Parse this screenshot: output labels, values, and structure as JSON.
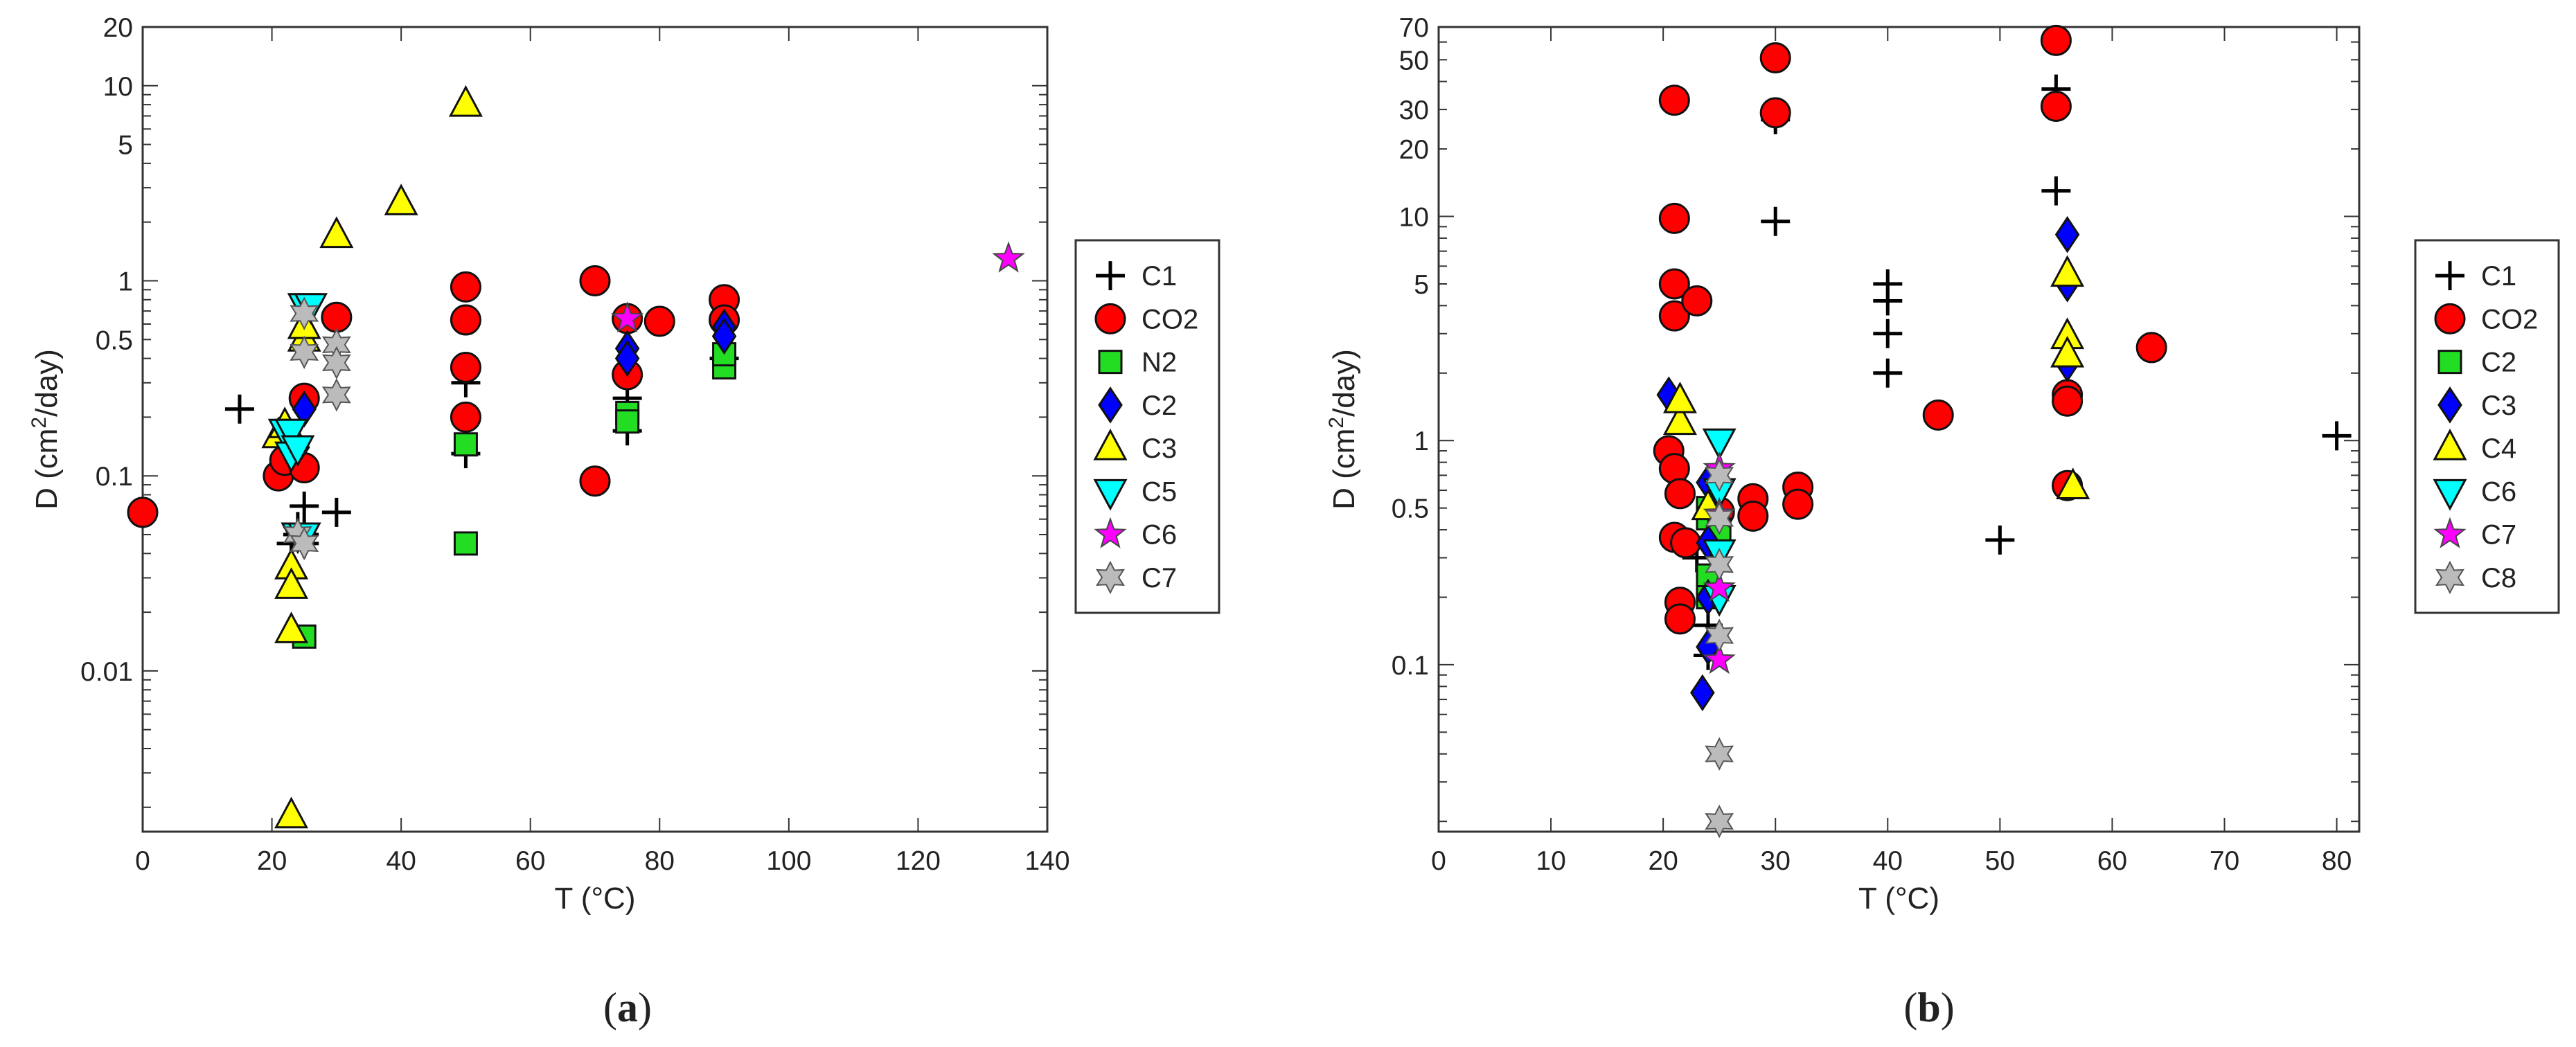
{
  "chart_data": [
    {
      "type": "scatter",
      "panel_label": "(a)",
      "panel_letter": "a",
      "title": "",
      "xlabel": "T (°C)",
      "ylabel": "D (cm²/day)",
      "ylabel_parts": [
        "D (cm",
        "2",
        "/day)"
      ],
      "xscale": "linear",
      "yscale": "log",
      "xlim": [
        0,
        140
      ],
      "ylim": [
        0.0015,
        20
      ],
      "xticks": [
        0,
        20,
        40,
        60,
        80,
        100,
        120,
        140
      ],
      "xtick_labels": [
        "0",
        "20",
        "40",
        "60",
        "80",
        "100",
        "120",
        "140"
      ],
      "yticks": [
        0.01,
        0.1,
        0.5,
        1,
        5,
        10,
        20
      ],
      "ytick_labels": [
        "0.01",
        "0.1",
        "0.5",
        "1",
        "5",
        "10",
        "20"
      ],
      "legend_position": "right-outside",
      "series": [
        {
          "name": "C1",
          "marker": "plus",
          "color": "#000000",
          "points": [
            [
              15,
              0.22
            ],
            [
              25,
              0.07
            ],
            [
              30,
              0.065
            ],
            [
              23,
              0.045
            ],
            [
              24,
              0.05
            ],
            [
              25,
              0.05
            ],
            [
              24,
              0.055
            ],
            [
              25,
              0.045
            ],
            [
              50,
              0.13
            ],
            [
              50,
              0.3
            ],
            [
              75,
              0.17
            ],
            [
              75,
              0.25
            ],
            [
              90,
              0.4
            ]
          ]
        },
        {
          "name": "CO2",
          "marker": "circle",
          "color": "#ff0000",
          "points": [
            [
              0,
              0.065
            ],
            [
              21,
              0.1
            ],
            [
              22,
              0.12
            ],
            [
              25,
              0.11
            ],
            [
              25,
              0.25
            ],
            [
              30,
              0.65
            ],
            [
              50,
              0.93
            ],
            [
              50,
              0.63
            ],
            [
              50,
              0.36
            ],
            [
              50,
              0.2
            ],
            [
              70,
              1.0
            ],
            [
              70,
              0.094
            ],
            [
              75,
              0.33
            ],
            [
              75,
              0.64
            ],
            [
              80,
              0.62
            ],
            [
              90,
              0.8
            ],
            [
              90,
              0.63
            ]
          ]
        },
        {
          "name": "N2",
          "marker": "square",
          "color": "#22dd22",
          "points": [
            [
              25,
              0.015
            ],
            [
              50,
              0.145
            ],
            [
              50,
              0.045
            ],
            [
              75,
              0.21
            ],
            [
              75,
              0.19
            ],
            [
              90,
              0.36
            ],
            [
              90,
              0.42
            ]
          ]
        },
        {
          "name": "C2",
          "marker": "diamond",
          "color": "#0000ff",
          "points": [
            [
              25,
              0.22
            ],
            [
              23,
              0.15
            ],
            [
              24,
              0.14
            ],
            [
              75,
              0.45
            ],
            [
              75,
              0.4
            ],
            [
              90,
              0.58
            ],
            [
              90,
              0.52
            ]
          ]
        },
        {
          "name": "C3",
          "marker": "triangle-up",
          "color": "#ffff00",
          "points": [
            [
              50,
              8.0
            ],
            [
              40,
              2.5
            ],
            [
              30,
              1.7
            ],
            [
              25,
              0.5
            ],
            [
              25,
              0.58
            ],
            [
              21,
              0.16
            ],
            [
              22,
              0.18
            ],
            [
              23,
              0.034
            ],
            [
              23,
              0.027
            ],
            [
              23,
              0.016
            ],
            [
              23,
              0.0018
            ]
          ]
        },
        {
          "name": "C5",
          "marker": "triangle-down",
          "color": "#00ffff",
          "points": [
            [
              25,
              0.75
            ],
            [
              26,
              0.75
            ],
            [
              22,
              0.17
            ],
            [
              23,
              0.17
            ],
            [
              23,
              0.13
            ],
            [
              24,
              0.14
            ],
            [
              24,
              0.05
            ],
            [
              25,
              0.05
            ]
          ]
        },
        {
          "name": "C6",
          "marker": "star5",
          "color": "#ff00ff",
          "points": [
            [
              134,
              1.3
            ],
            [
              75,
              0.64
            ]
          ]
        },
        {
          "name": "C7",
          "marker": "star6",
          "color": "#bbbbbb",
          "points": [
            [
              25,
              0.68
            ],
            [
              25,
              0.43
            ],
            [
              30,
              0.47
            ],
            [
              30,
              0.38
            ],
            [
              30,
              0.26
            ],
            [
              24,
              0.05
            ],
            [
              25,
              0.045
            ]
          ]
        }
      ]
    },
    {
      "type": "scatter",
      "panel_label": "(b)",
      "panel_letter": "b",
      "title": "",
      "xlabel": "T (°C)",
      "ylabel": "D (cm²/day)",
      "ylabel_parts": [
        "D (cm",
        "2",
        "/day)"
      ],
      "xscale": "linear",
      "yscale": "log",
      "xlim": [
        0,
        82
      ],
      "ylim": [
        0.018,
        70
      ],
      "xticks": [
        0,
        10,
        20,
        30,
        40,
        50,
        60,
        70,
        80
      ],
      "xtick_labels": [
        "0",
        "10",
        "20",
        "30",
        "40",
        "50",
        "60",
        "70",
        "80"
      ],
      "yticks": [
        0.1,
        0.5,
        1,
        5,
        10,
        20,
        30,
        50,
        70
      ],
      "ytick_labels": [
        "0.1",
        "0.5",
        "1",
        "5",
        "10",
        "20",
        "30",
        "50",
        "70"
      ],
      "legend_position": "right-outside",
      "series": [
        {
          "name": "C1",
          "marker": "plus",
          "color": "#000000",
          "points": [
            [
              30,
              27
            ],
            [
              30,
              9.5
            ],
            [
              40,
              5.0
            ],
            [
              40,
              4.2
            ],
            [
              40,
              3.0
            ],
            [
              40,
              2.0
            ],
            [
              50,
              0.36
            ],
            [
              55,
              37
            ],
            [
              55,
              13
            ],
            [
              80,
              1.05
            ],
            [
              24,
              0.15
            ],
            [
              24,
              0.11
            ],
            [
              23,
              0.3
            ]
          ]
        },
        {
          "name": "CO2",
          "marker": "circle",
          "color": "#ff0000",
          "points": [
            [
              21,
              33
            ],
            [
              21,
              9.8
            ],
            [
              21,
              5.0
            ],
            [
              21,
              3.6
            ],
            [
              23,
              4.2
            ],
            [
              20.5,
              0.9
            ],
            [
              21,
              0.75
            ],
            [
              21.5,
              0.58
            ],
            [
              21,
              0.37
            ],
            [
              22,
              0.35
            ],
            [
              21.5,
              0.19
            ],
            [
              21.5,
              0.16
            ],
            [
              28,
              0.55
            ],
            [
              28,
              0.46
            ],
            [
              32,
              0.62
            ],
            [
              32,
              0.52
            ],
            [
              30,
              51
            ],
            [
              30,
              29
            ],
            [
              44.5,
              1.3
            ],
            [
              55,
              61
            ],
            [
              55,
              31
            ],
            [
              56,
              1.6
            ],
            [
              56,
              1.5
            ],
            [
              56,
              0.63
            ],
            [
              63.5,
              2.6
            ],
            [
              25,
              0.48
            ]
          ]
        },
        {
          "name": "C2",
          "marker": "square",
          "color": "#22dd22",
          "points": [
            [
              24,
              0.5
            ],
            [
              24,
              0.45
            ],
            [
              25,
              0.4
            ],
            [
              24,
              0.25
            ],
            [
              24,
              0.2
            ]
          ]
        },
        {
          "name": "C3",
          "marker": "diamond",
          "color": "#0000ff",
          "points": [
            [
              20.5,
              1.6
            ],
            [
              24,
              0.65
            ],
            [
              24,
              0.35
            ],
            [
              24,
              0.2
            ],
            [
              23.5,
              0.075
            ],
            [
              56,
              8.3
            ],
            [
              56,
              5.0
            ],
            [
              56,
              2.2
            ],
            [
              24,
              0.12
            ]
          ]
        },
        {
          "name": "C4",
          "marker": "triangle-up",
          "color": "#ffff00",
          "points": [
            [
              21.5,
              1.2
            ],
            [
              21.5,
              1.5
            ],
            [
              56,
              5.5
            ],
            [
              56,
              2.9
            ],
            [
              56,
              2.4
            ],
            [
              56.5,
              0.62
            ],
            [
              24,
              0.5
            ]
          ]
        },
        {
          "name": "C6",
          "marker": "triangle-down",
          "color": "#00ffff",
          "points": [
            [
              25,
              1.0
            ],
            [
              25,
              0.6
            ],
            [
              25,
              0.32
            ],
            [
              25,
              0.2
            ]
          ]
        },
        {
          "name": "C7",
          "marker": "star5",
          "color": "#ff00ff",
          "points": [
            [
              25,
              0.75
            ],
            [
              25,
              0.47
            ],
            [
              25,
              0.22
            ],
            [
              25,
              0.105
            ]
          ]
        },
        {
          "name": "C8",
          "marker": "star6",
          "color": "#bbbbbb",
          "points": [
            [
              25,
              0.7
            ],
            [
              25,
              0.45
            ],
            [
              25,
              0.28
            ],
            [
              25,
              0.135
            ],
            [
              25,
              0.04
            ],
            [
              25,
              0.02
            ]
          ]
        }
      ]
    }
  ]
}
